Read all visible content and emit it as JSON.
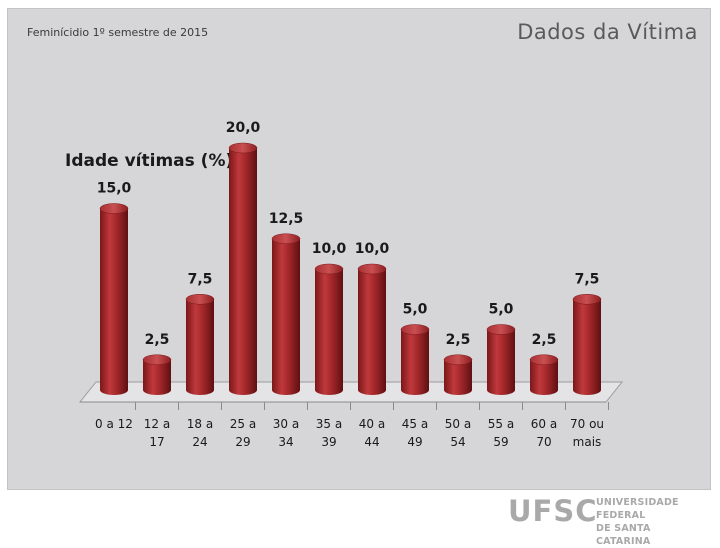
{
  "header": {
    "subject": "Feminícidio  1º semestre de 2015",
    "section_title": "Dados da Vítima"
  },
  "footer": {
    "logo_letters": "UFSC",
    "institution_line1": "UNIVERSIDADE FEDERAL",
    "institution_line2": "DE SANTA CATARINA"
  },
  "colors": {
    "slide_background": "#d6d6d8",
    "bar": "#a3272a",
    "bar_dark": "#6e1416",
    "bar_light": "#c64a4c",
    "text": "#1a1a1a"
  },
  "chart_data": {
    "type": "bar",
    "title": "Idade vítimas (%)",
    "categories": [
      [
        "0 a 12",
        ""
      ],
      [
        "12 a",
        "17"
      ],
      [
        "18 a",
        "24"
      ],
      [
        "25 a",
        "29"
      ],
      [
        "30 a",
        "34"
      ],
      [
        "35 a",
        "39"
      ],
      [
        "40 a",
        "44"
      ],
      [
        "45 a",
        "49"
      ],
      [
        "50 a",
        "54"
      ],
      [
        "55 a",
        "59"
      ],
      [
        "60 a",
        "70"
      ],
      [
        "70 ou",
        "mais"
      ]
    ],
    "values": [
      15.0,
      2.5,
      7.5,
      20.0,
      12.5,
      10.0,
      10.0,
      5.0,
      2.5,
      5.0,
      2.5,
      7.5
    ],
    "value_labels": [
      "15,0",
      "2,5",
      "7,5",
      "20,0",
      "12,5",
      "10,0",
      "10,0",
      "5,0",
      "2,5",
      "5,0",
      "2,5",
      "7,5"
    ],
    "ylim": [
      0,
      20
    ],
    "grid": false,
    "legend": false,
    "style": "3d-cylinder"
  }
}
